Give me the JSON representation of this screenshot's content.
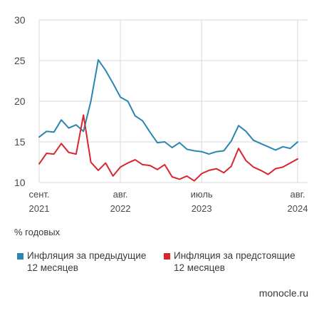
{
  "chart_data": {
    "type": "line",
    "title": "",
    "xlabel": "",
    "ylabel": "% годовых",
    "ylim": [
      10,
      30
    ],
    "yticks": [
      10,
      15,
      20,
      25,
      30
    ],
    "grid": true,
    "legend_position": "bottom",
    "x": [
      "2021-09",
      "2021-10",
      "2021-11",
      "2021-12",
      "2022-01",
      "2022-02",
      "2022-03",
      "2022-04",
      "2022-05",
      "2022-06",
      "2022-07",
      "2022-08",
      "2022-09",
      "2022-10",
      "2022-11",
      "2022-12",
      "2023-01",
      "2023-02",
      "2023-03",
      "2023-04",
      "2023-05",
      "2023-06",
      "2023-07",
      "2023-08",
      "2023-09",
      "2023-10",
      "2023-11",
      "2023-12",
      "2024-01",
      "2024-02",
      "2024-03",
      "2024-04",
      "2024-05",
      "2024-06",
      "2024-07",
      "2024-08"
    ],
    "x_ticks": [
      {
        "x": "2021-09",
        "month": "сент.",
        "year": "2021"
      },
      {
        "x": "2022-08",
        "month": "авг.",
        "year": "2022"
      },
      {
        "x": "2023-07",
        "month": "июль",
        "year": "2023"
      },
      {
        "x": "2024-08",
        "month": "авг.",
        "year": "2024"
      }
    ],
    "series": [
      {
        "name": "Инфляция за предыдущие 12 месяцев",
        "color": "#2a86b0",
        "values": [
          15.6,
          16.3,
          16.2,
          17.7,
          16.7,
          17.1,
          16.3,
          20.0,
          25.1,
          23.8,
          22.2,
          20.5,
          20.0,
          18.2,
          17.6,
          16.2,
          14.9,
          15.0,
          14.3,
          14.9,
          14.1,
          13.9,
          13.8,
          13.5,
          13.8,
          13.9,
          15.1,
          17.0,
          16.3,
          15.2,
          14.8,
          14.4,
          14.0,
          14.4,
          14.2,
          15.0
        ]
      },
      {
        "name": "Инфляция за предстоящие 12 месяцев",
        "color": "#d9262e",
        "values": [
          12.3,
          13.6,
          13.5,
          14.8,
          13.7,
          13.5,
          18.3,
          12.5,
          11.5,
          12.4,
          10.8,
          11.9,
          12.4,
          12.8,
          12.2,
          12.1,
          11.6,
          12.2,
          10.7,
          10.4,
          10.8,
          10.2,
          11.1,
          11.5,
          11.7,
          11.2,
          12.0,
          14.2,
          12.7,
          11.9,
          11.5,
          11.0,
          11.7,
          11.9,
          12.4,
          12.9
        ]
      }
    ]
  },
  "unit_label": "% годовых",
  "legend": [
    {
      "line1": "Инфляция за предыдущие",
      "line2": "12 месяцев",
      "color": "#2a86b0"
    },
    {
      "line1": "Инфляция за предстоящие",
      "line2": "12 месяцев",
      "color": "#d9262e"
    }
  ],
  "source": "monocle.ru"
}
